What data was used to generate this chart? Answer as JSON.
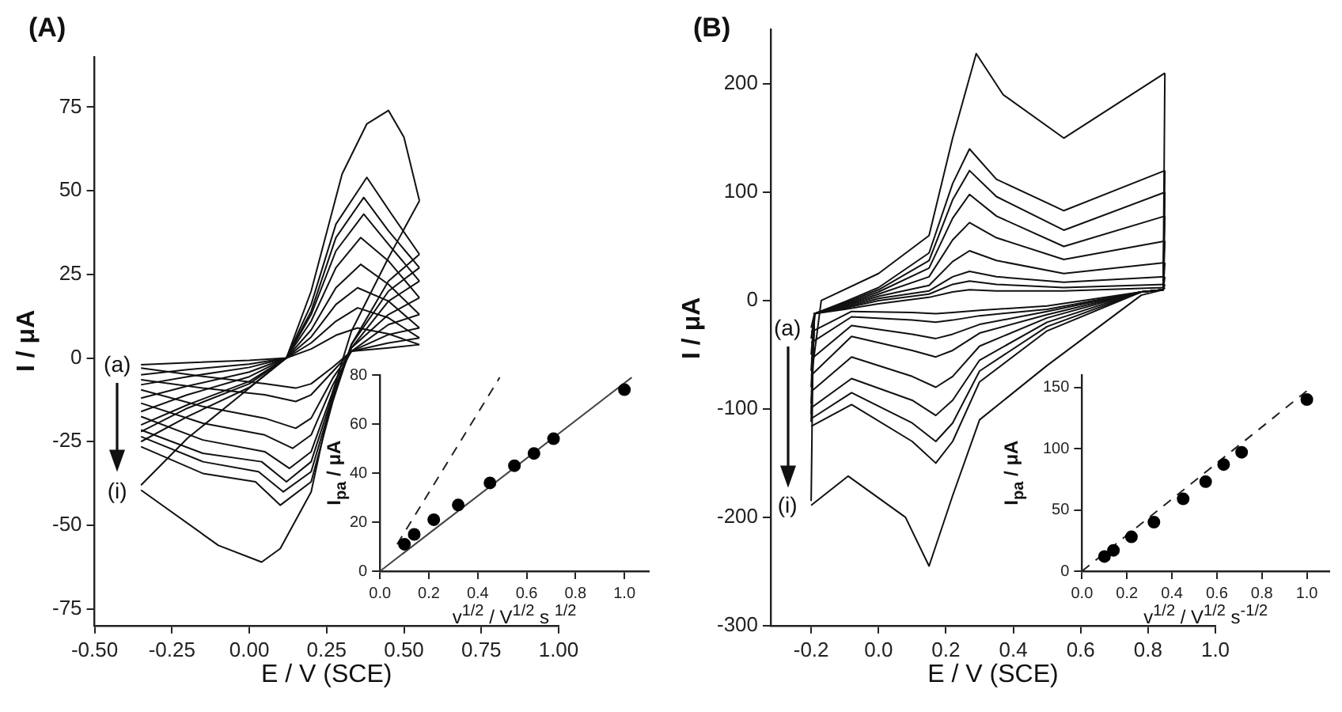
{
  "chart_data": [
    {
      "type": "line",
      "title": "(A)",
      "xlabel": "E / V (SCE)",
      "ylabel": "I / μA",
      "marker": "none",
      "xlim": [
        -0.5,
        1.0
      ],
      "xticks": [
        {
          "value": -0.5,
          "label": "-0.50"
        },
        {
          "value": -0.25,
          "label": "-0.25"
        },
        {
          "value": 0,
          "label": "0.00"
        },
        {
          "value": 0.25,
          "label": "0.25"
        },
        {
          "value": 0.5,
          "label": "0.50"
        },
        {
          "value": 0.75,
          "label": "0.75"
        },
        {
          "value": 1.0,
          "label": "1.00"
        }
      ],
      "ylim": [
        -80,
        90
      ],
      "yticks": [
        -75,
        -50,
        -25,
        0,
        25,
        50,
        75
      ],
      "annotations": [
        "(a)",
        "(i)"
      ],
      "series": [
        {
          "color": "#111111",
          "x": [
            -0.35,
            -0.2,
            0,
            0.12,
            0.2,
            0.28,
            0.35,
            0.45,
            0.55
          ],
          "values": [
            -2,
            -1.4,
            -0.7,
            0,
            2.7,
            6.8,
            9,
            7.2,
            4
          ]
        },
        {
          "color": "#111111",
          "x": [
            0.55,
            0.45,
            0.33,
            0.27,
            0.2,
            0.15,
            0.05,
            -0.15,
            -0.35
          ],
          "values": [
            4,
            3,
            2,
            -2.7,
            -7.7,
            -9,
            -7.7,
            -5.5,
            -3
          ]
        },
        {
          "color": "#111111",
          "x": [
            -0.35,
            -0.2,
            0,
            0.12,
            0.2,
            0.28,
            0.35,
            0.45,
            0.55
          ],
          "values": [
            -5,
            -3.5,
            -1.8,
            0,
            4.5,
            11,
            15,
            12,
            6
          ]
        },
        {
          "color": "#111111",
          "x": [
            0.55,
            0.45,
            0.33,
            0.27,
            0.2,
            0.15,
            0.05,
            -0.15,
            -0.35
          ],
          "values": [
            6,
            4.5,
            2,
            -4,
            -11,
            -13,
            -11,
            -9,
            -6.5
          ]
        },
        {
          "color": "#111111",
          "x": [
            -0.35,
            -0.2,
            0,
            0.12,
            0.2,
            0.28,
            0.35,
            0.45,
            0.55
          ],
          "values": [
            -8,
            -5.6,
            -2.8,
            0,
            6.3,
            16,
            21,
            17,
            9
          ]
        },
        {
          "color": "#111111",
          "x": [
            0.55,
            0.45,
            0.33,
            0.27,
            0.2,
            0.15,
            0.05,
            -0.15,
            -0.35
          ],
          "values": [
            9,
            7,
            2,
            -6,
            -18,
            -21,
            -18,
            -14.5,
            -9.5
          ]
        },
        {
          "color": "#111111",
          "x": [
            -0.35,
            -0.2,
            0,
            0.12,
            0.2,
            0.28,
            0.36,
            0.45,
            0.55
          ],
          "values": [
            -12,
            -8.4,
            -4.2,
            0,
            8.4,
            21,
            28,
            22,
            13
          ]
        },
        {
          "color": "#111111",
          "x": [
            0.55,
            0.45,
            0.33,
            0.27,
            0.2,
            0.14,
            0.05,
            -0.15,
            -0.35
          ],
          "values": [
            13,
            10,
            2,
            -8,
            -23,
            -27,
            -23,
            -19.5,
            -13.5
          ]
        },
        {
          "color": "#111111",
          "x": [
            -0.35,
            -0.2,
            0,
            0.12,
            0.2,
            0.28,
            0.36,
            0.45,
            0.55
          ],
          "values": [
            -16,
            -11,
            -5.6,
            0,
            11,
            27,
            36,
            29,
            18
          ]
        },
        {
          "color": "#111111",
          "x": [
            0.55,
            0.45,
            0.33,
            0.27,
            0.2,
            0.13,
            0.05,
            -0.15,
            -0.35
          ],
          "values": [
            18,
            13,
            3,
            -10,
            -28,
            -33,
            -28,
            -24.5,
            -17.5
          ]
        },
        {
          "color": "#111111",
          "x": [
            -0.35,
            -0.2,
            0,
            0.12,
            0.2,
            0.28,
            0.37,
            0.45,
            0.55
          ],
          "values": [
            -20,
            -14,
            -7,
            0,
            13,
            32,
            43,
            34,
            23
          ]
        },
        {
          "color": "#111111",
          "x": [
            0.55,
            0.45,
            0.33,
            0.27,
            0.2,
            0.12,
            0.04,
            -0.15,
            -0.35
          ],
          "values": [
            23,
            17,
            3,
            -11,
            -31,
            -37,
            -31,
            -28.5,
            -21.5
          ]
        },
        {
          "color": "#111111",
          "x": [
            -0.35,
            -0.2,
            0,
            0.12,
            0.2,
            0.28,
            0.37,
            0.45,
            0.55
          ],
          "values": [
            -22,
            -15,
            -7.7,
            0,
            14,
            36,
            48,
            38,
            27
          ]
        },
        {
          "color": "#111111",
          "x": [
            0.55,
            0.45,
            0.33,
            0.27,
            0.2,
            0.11,
            0.03,
            -0.15,
            -0.35
          ],
          "values": [
            27,
            20,
            4,
            -12,
            -34,
            -40,
            -34,
            -31,
            -23.5
          ]
        },
        {
          "color": "#111111",
          "x": [
            -0.35,
            -0.2,
            0,
            0.12,
            0.2,
            0.28,
            0.38,
            0.46,
            0.55
          ],
          "values": [
            -25,
            -17.5,
            -8.8,
            0,
            16,
            40,
            54,
            43,
            31
          ]
        },
        {
          "color": "#111111",
          "x": [
            0.55,
            0.45,
            0.33,
            0.27,
            0.2,
            0.1,
            0.02,
            -0.15,
            -0.35
          ],
          "values": [
            31,
            23,
            4,
            -13,
            -37,
            -44,
            -37,
            -34.5,
            -26.5
          ]
        },
        {
          "color": "#111111",
          "x": [
            -0.35,
            -0.2,
            0,
            0.12,
            0.2,
            0.3,
            0.38,
            0.45,
            0.5,
            0.55
          ],
          "values": [
            -38,
            -24,
            -9,
            0,
            20,
            55,
            70,
            74,
            66,
            47
          ]
        },
        {
          "color": "#111111",
          "x": [
            0.55,
            0.45,
            0.33,
            0.27,
            0.2,
            0.1,
            0.04,
            -0.1,
            -0.35
          ],
          "values": [
            47,
            30,
            8,
            -10,
            -40,
            -57,
            -61,
            -56,
            -39.5
          ]
        }
      ]
    },
    {
      "type": "scatter",
      "xlabel": "v$^{1/2}$ / V$^{1/2}$ s $^{1/2}$",
      "ylabel": "I$_{pa}$ / μA",
      "xlim": [
        0,
        1.1
      ],
      "xticks": [
        {
          "value": 0,
          "label": "0.0"
        },
        {
          "value": 0.2,
          "label": "0.2"
        },
        {
          "value": 0.4,
          "label": "0.4"
        },
        {
          "value": 0.6,
          "label": "0.6"
        },
        {
          "value": 0.8,
          "label": "0.8"
        },
        {
          "value": 1.0,
          "label": "1.0"
        }
      ],
      "ylim": [
        0,
        80
      ],
      "yticks": [
        0,
        20,
        40,
        60,
        80
      ],
      "series": [
        {
          "marker": "circle",
          "color": "#000000",
          "x": [
            0.1,
            0.14,
            0.22,
            0.32,
            0.45,
            0.55,
            0.63,
            0.71,
            1.0
          ],
          "values": [
            11,
            15,
            21,
            27,
            36,
            43,
            48,
            54,
            74
          ]
        },
        {
          "type": "line",
          "marker": "none",
          "line_style": "solid",
          "color": "#444444",
          "x": [
            0,
            1.03
          ],
          "values": [
            0,
            79
          ]
        },
        {
          "type": "line",
          "marker": "none",
          "line_style": "dashed",
          "color": "#222222",
          "x": [
            0.07,
            0.49
          ],
          "values": [
            11,
            79
          ]
        }
      ]
    },
    {
      "type": "line",
      "title": "(B)",
      "xlabel": "E / V (SCE)",
      "ylabel": "I / μA",
      "marker": "none",
      "xlim": [
        -0.32,
        1.0
      ],
      "xticks": [
        -0.2,
        {
          "value": 0,
          "label": "0.0"
        },
        0.2,
        0.4,
        0.6,
        0.8,
        {
          "value": 1.0,
          "label": "1.0"
        }
      ],
      "ylim": [
        -300,
        250
      ],
      "yticks": [
        -300,
        -200,
        -100,
        0,
        100,
        200
      ],
      "annotations": [
        "(a)",
        "(i)"
      ],
      "series": [
        {
          "color": "#111111",
          "x": [
            -0.2,
            -0.19,
            -0.1,
            0,
            0.15,
            0.22,
            0.27,
            0.35,
            0.55,
            0.85
          ],
          "values": [
            -25,
            -12,
            -8,
            -3,
            3,
            8,
            10,
            9,
            9,
            12
          ]
        },
        {
          "color": "#111111",
          "x": [
            0.85,
            0.845,
            0.78,
            0.5,
            0.3,
            0.22,
            0.17,
            0.1,
            -0.08,
            -0.2
          ],
          "values": [
            12,
            10,
            8,
            -5,
            -9,
            -11,
            -12,
            -11,
            -10,
            -29
          ]
        },
        {
          "color": "#111111",
          "x": [
            -0.2,
            -0.19,
            -0.1,
            0,
            0.15,
            0.22,
            0.27,
            0.35,
            0.55,
            0.85
          ],
          "values": [
            -35,
            -12,
            -7,
            0,
            6,
            15,
            18,
            15,
            12,
            15
          ]
        },
        {
          "color": "#111111",
          "x": [
            0.85,
            0.845,
            0.78,
            0.5,
            0.3,
            0.22,
            0.17,
            0.1,
            -0.08,
            -0.2
          ],
          "values": [
            15,
            10,
            8,
            -8,
            -14,
            -18,
            -20,
            -18,
            -15,
            -39
          ]
        },
        {
          "color": "#111111",
          "x": [
            -0.2,
            -0.19,
            -0.1,
            0,
            0.15,
            0.22,
            0.27,
            0.35,
            0.55,
            0.85
          ],
          "values": [
            -50,
            -12,
            -6,
            2,
            9,
            22,
            27,
            22,
            17,
            22
          ]
        },
        {
          "color": "#111111",
          "x": [
            0.85,
            0.845,
            0.78,
            0.5,
            0.3,
            0.22,
            0.17,
            0.1,
            -0.08,
            -0.2
          ],
          "values": [
            22,
            10,
            8,
            -10,
            -22,
            -31,
            -35,
            -31,
            -23,
            -54
          ]
        },
        {
          "color": "#111111",
          "x": [
            -0.2,
            -0.19,
            -0.1,
            0,
            0.15,
            0.22,
            0.27,
            0.35,
            0.55,
            0.85
          ],
          "values": [
            -65,
            -12,
            -5,
            4,
            14,
            36,
            46,
            37,
            25,
            35
          ]
        },
        {
          "color": "#111111",
          "x": [
            0.85,
            0.845,
            0.78,
            0.5,
            0.3,
            0.22,
            0.17,
            0.1,
            -0.08,
            -0.2
          ],
          "values": [
            35,
            10,
            8,
            -13,
            -30,
            -46,
            -52,
            -46,
            -33,
            -69
          ]
        },
        {
          "color": "#111111",
          "x": [
            -0.2,
            -0.19,
            -0.1,
            0,
            0.15,
            0.22,
            0.27,
            0.35,
            0.55,
            0.85
          ],
          "values": [
            -80,
            -12,
            -4,
            6,
            22,
            56,
            72,
            58,
            38,
            55
          ]
        },
        {
          "color": "#111111",
          "x": [
            0.85,
            0.845,
            0.78,
            0.5,
            0.3,
            0.22,
            0.17,
            0.1,
            -0.08,
            -0.2
          ],
          "values": [
            55,
            10,
            8,
            -16,
            -42,
            -70,
            -80,
            -70,
            -52,
            -84
          ]
        },
        {
          "color": "#111111",
          "x": [
            -0.2,
            -0.19,
            -0.1,
            0,
            0.15,
            0.22,
            0.27,
            0.35,
            0.55,
            0.85
          ],
          "values": [
            -95,
            -12,
            -3,
            8,
            30,
            76,
            98,
            78,
            50,
            78
          ]
        },
        {
          "color": "#111111",
          "x": [
            0.85,
            0.845,
            0.78,
            0.5,
            0.3,
            0.22,
            0.17,
            0.1,
            -0.08,
            -0.2
          ],
          "values": [
            78,
            10,
            8,
            -20,
            -55,
            -92,
            -106,
            -92,
            -72,
            -99
          ]
        },
        {
          "color": "#111111",
          "x": [
            -0.2,
            -0.19,
            -0.1,
            0,
            0.15,
            0.22,
            0.27,
            0.35,
            0.55,
            0.85
          ],
          "values": [
            -105,
            -12,
            -2,
            10,
            37,
            93,
            120,
            96,
            65,
            100
          ]
        },
        {
          "color": "#111111",
          "x": [
            0.85,
            0.845,
            0.78,
            0.5,
            0.3,
            0.22,
            0.17,
            0.1,
            -0.08,
            -0.2
          ],
          "values": [
            100,
            10,
            8,
            -24,
            -65,
            -113,
            -130,
            -113,
            -85,
            -109
          ]
        },
        {
          "color": "#111111",
          "x": [
            -0.2,
            -0.19,
            -0.1,
            0,
            0.15,
            0.22,
            0.27,
            0.35,
            0.55,
            0.85
          ],
          "values": [
            -112,
            -12,
            -1,
            12,
            44,
            108,
            140,
            112,
            83,
            120
          ]
        },
        {
          "color": "#111111",
          "x": [
            0.85,
            0.845,
            0.78,
            0.5,
            0.3,
            0.22,
            0.17,
            0.1,
            -0.08,
            -0.2
          ],
          "values": [
            120,
            10,
            8,
            -28,
            -75,
            -130,
            -150,
            -130,
            -96,
            -116
          ]
        },
        {
          "color": "#111111",
          "x": [
            -0.2,
            -0.195,
            -0.17,
            0,
            0.15,
            0.22,
            0.29,
            0.37,
            0.55,
            0.85
          ],
          "values": [
            -185,
            -60,
            0,
            25,
            60,
            150,
            228,
            190,
            150,
            210
          ]
        },
        {
          "color": "#111111",
          "x": [
            0.85,
            0.845,
            0.78,
            0.5,
            0.3,
            0.22,
            0.15,
            0.08,
            -0.09,
            -0.2
          ],
          "values": [
            210,
            10,
            5,
            -60,
            -110,
            -180,
            -245,
            -200,
            -162,
            -189
          ]
        }
      ]
    },
    {
      "type": "scatter",
      "xlabel": "v$^{1/2}$ / V$^{1/2}$ s$^{-1/2}$",
      "ylabel": "I$_{pa}$ / μA",
      "xlim": [
        0,
        1.1
      ],
      "xticks": [
        {
          "value": 0,
          "label": "0.0"
        },
        {
          "value": 0.2,
          "label": "0.2"
        },
        {
          "value": 0.4,
          "label": "0.4"
        },
        {
          "value": 0.6,
          "label": "0.6"
        },
        {
          "value": 0.8,
          "label": "0.8"
        },
        {
          "value": 1.0,
          "label": "1.0"
        }
      ],
      "ylim": [
        0,
        160
      ],
      "yticks": [
        0,
        50,
        100,
        150
      ],
      "series": [
        {
          "marker": "circle",
          "color": "#000000",
          "x": [
            0.1,
            0.14,
            0.22,
            0.32,
            0.45,
            0.55,
            0.63,
            0.71,
            1.0
          ],
          "values": [
            12,
            17,
            28,
            40,
            59,
            73,
            87,
            97,
            140
          ]
        },
        {
          "type": "line",
          "marker": "none",
          "line_style": "dashed",
          "color": "#222222",
          "x": [
            0,
            1.0
          ],
          "values": [
            0,
            147
          ]
        }
      ]
    }
  ]
}
